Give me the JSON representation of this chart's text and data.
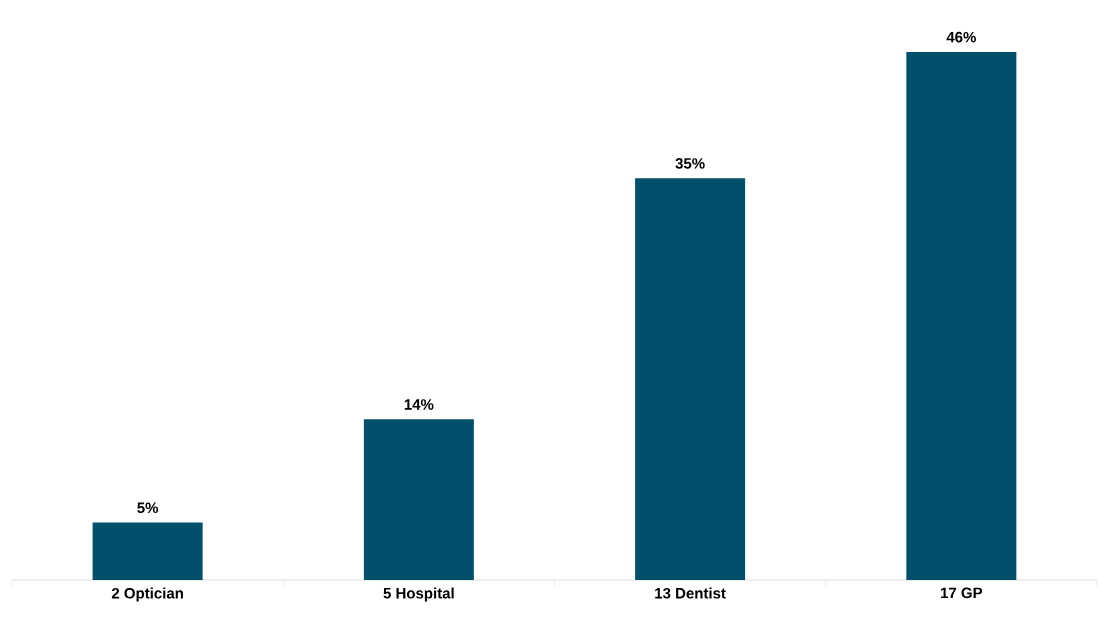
{
  "chart_data": {
    "type": "bar",
    "categories": [
      "2 Optician",
      "5 Hospital",
      "13 Dentist",
      "17 GP"
    ],
    "values": [
      5,
      14,
      35,
      46
    ],
    "value_labels": [
      "5%",
      "14%",
      "35%",
      "46%"
    ],
    "color": "#004f6b"
  }
}
